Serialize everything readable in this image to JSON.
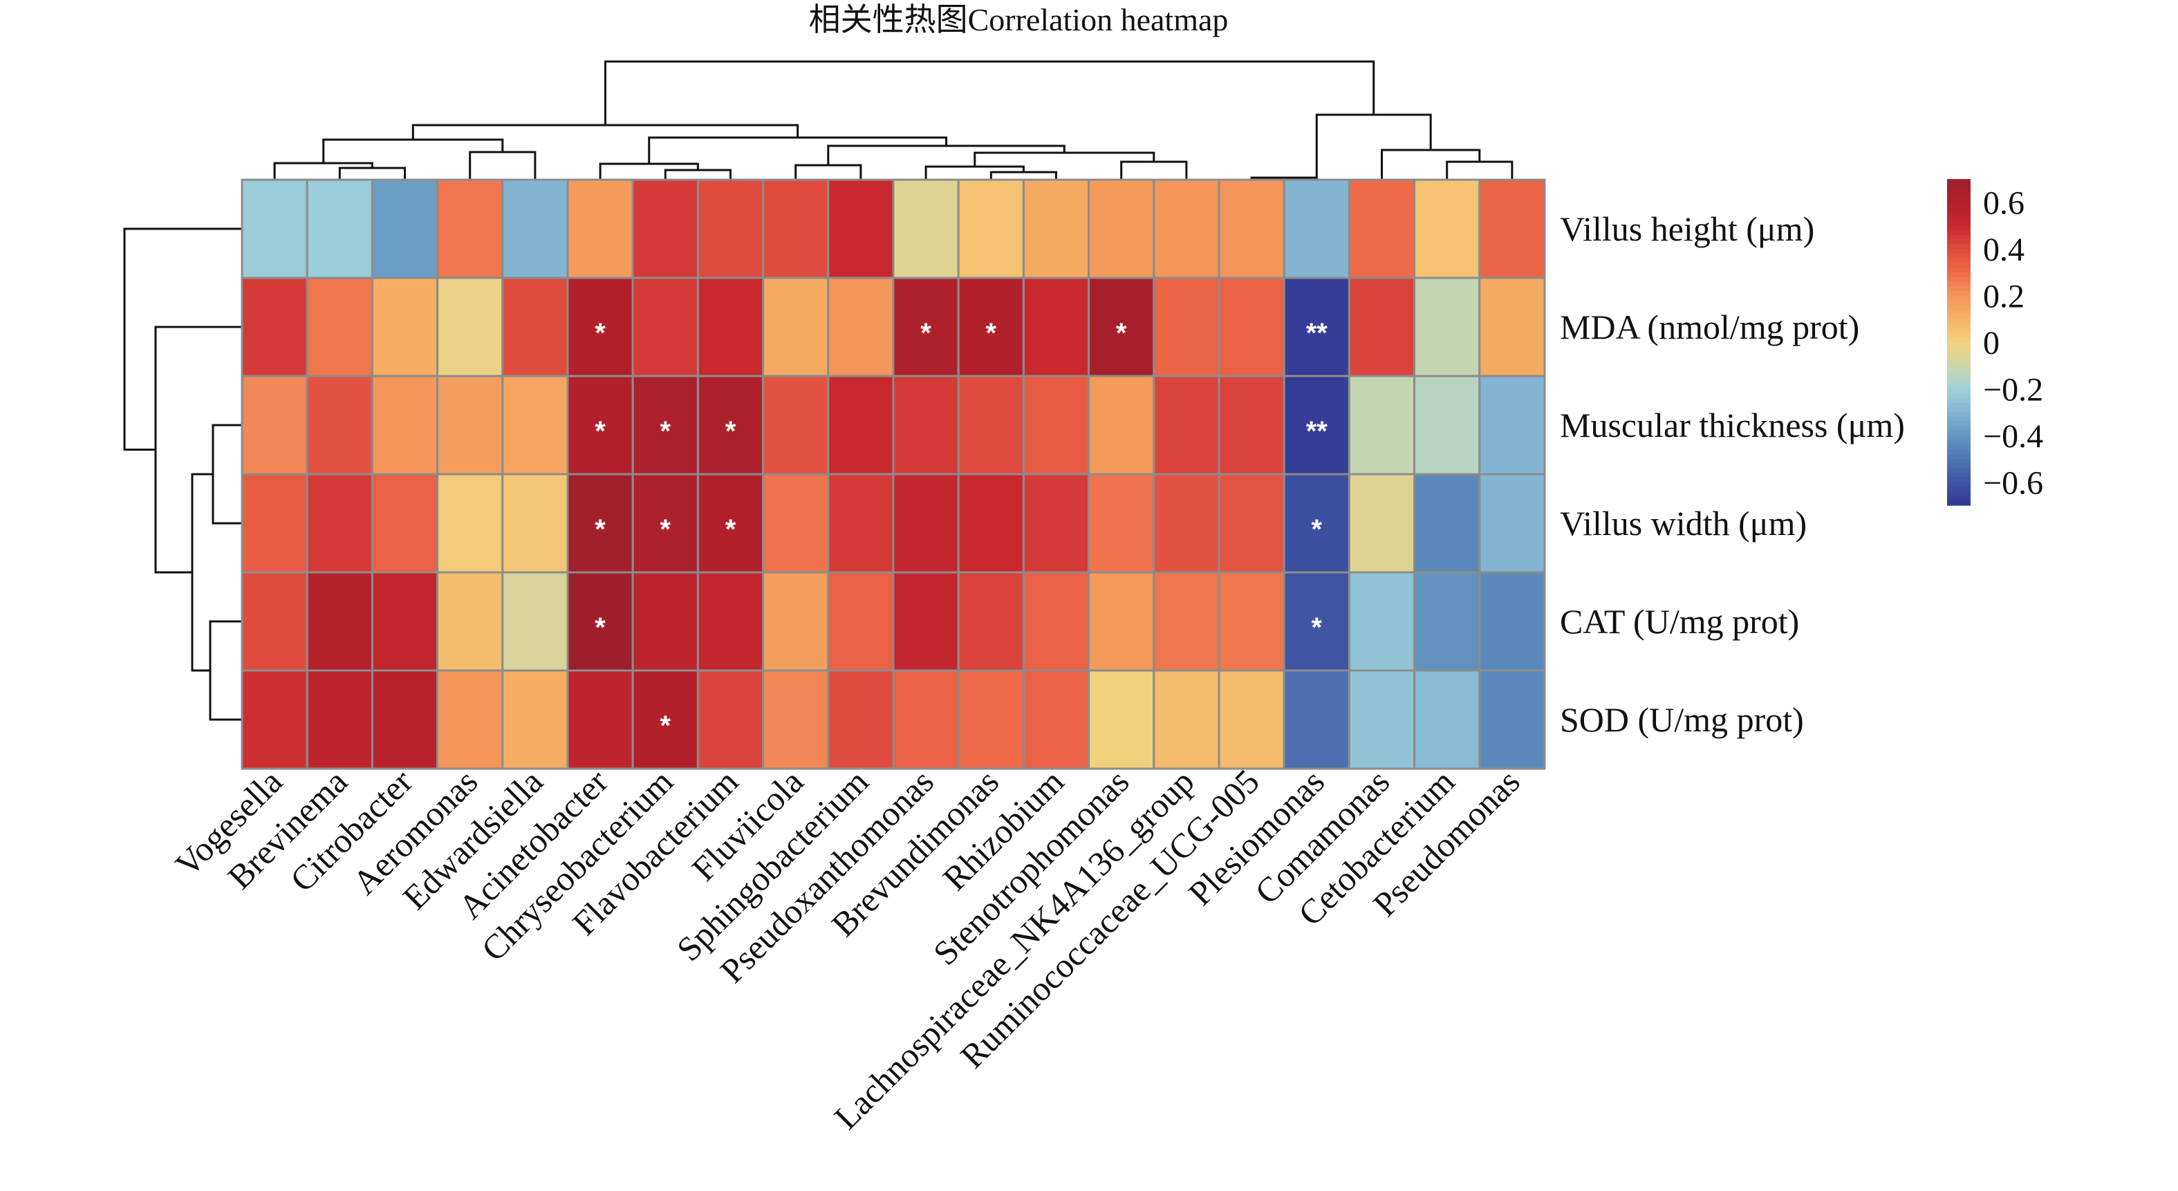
{
  "chart_data": {
    "type": "heatmap",
    "title": "相关性热图Correlation heatmap",
    "rows": [
      "Villus height (μm)",
      "MDA (nmol/mg prot)",
      "Muscular thickness (μm)",
      "Villus width (μm)",
      "CAT (U/mg prot)",
      "SOD (U/mg prot)"
    ],
    "columns": [
      "Vogesella",
      "Brevinema",
      "Citrobacter",
      "Aeromonas",
      "Edwardsiella",
      "Acinetobacter",
      "Chryseobacterium",
      "Flavobacterium",
      "Fluviicola",
      "Sphingobacterium",
      "Pseudoxanthomonas",
      "Brevundimonas",
      "Rhizobium",
      "Stenotrophomonas",
      "Lachnospiraceae_NK4A136_group",
      "Ruminococcaceae_UCG-005",
      "Plesiomonas",
      "Comamonas",
      "Cetobacterium",
      "Pseudomonas"
    ],
    "values": [
      [
        -0.22,
        -0.22,
        -0.38,
        0.27,
        -0.3,
        0.18,
        0.45,
        0.4,
        0.4,
        0.5,
        -0.05,
        0.05,
        0.13,
        0.18,
        0.2,
        0.2,
        -0.3,
        0.3,
        0.05,
        0.32
      ],
      [
        0.45,
        0.27,
        0.12,
        -0.02,
        0.4,
        0.6,
        0.45,
        0.5,
        0.13,
        0.2,
        0.62,
        0.6,
        0.5,
        0.65,
        0.32,
        0.33,
        -0.68,
        0.42,
        -0.12,
        0.13
      ],
      [
        0.23,
        0.38,
        0.2,
        0.17,
        0.15,
        0.6,
        0.63,
        0.63,
        0.38,
        0.5,
        0.45,
        0.4,
        0.35,
        0.18,
        0.42,
        0.42,
        -0.68,
        -0.12,
        -0.15,
        -0.3
      ],
      [
        0.35,
        0.45,
        0.33,
        0.02,
        0.03,
        0.68,
        0.63,
        0.6,
        0.28,
        0.45,
        0.52,
        0.5,
        0.45,
        0.28,
        0.38,
        0.37,
        -0.62,
        -0.05,
        -0.45,
        -0.3
      ],
      [
        0.4,
        0.58,
        0.53,
        0.07,
        -0.07,
        0.7,
        0.55,
        0.52,
        0.17,
        0.33,
        0.52,
        0.42,
        0.33,
        0.18,
        0.27,
        0.27,
        -0.6,
        -0.25,
        -0.42,
        -0.45
      ],
      [
        0.48,
        0.55,
        0.57,
        0.2,
        0.12,
        0.55,
        0.6,
        0.42,
        0.23,
        0.4,
        0.33,
        0.3,
        0.33,
        0.0,
        0.07,
        0.07,
        -0.52,
        -0.25,
        -0.28,
        -0.45
      ]
    ],
    "significance": [
      [
        "",
        "",
        "",
        "",
        "",
        "",
        "",
        "",
        "",
        "",
        "",
        "",
        "",
        "",
        "",
        "",
        "",
        "",
        "",
        ""
      ],
      [
        "",
        "",
        "",
        "",
        "",
        "*",
        "",
        "",
        "",
        "",
        "*",
        "*",
        "",
        "*",
        "",
        "",
        "**",
        "",
        "",
        ""
      ],
      [
        "",
        "",
        "",
        "",
        "",
        "*",
        "*",
        "*",
        "",
        "",
        "",
        "",
        "",
        "",
        "",
        "",
        "**",
        "",
        "",
        ""
      ],
      [
        "",
        "",
        "",
        "",
        "",
        "*",
        "*",
        "*",
        "",
        "",
        "",
        "",
        "",
        "",
        "",
        "",
        "*",
        "",
        "",
        ""
      ],
      [
        "",
        "",
        "",
        "",
        "",
        "*",
        "",
        "",
        "",
        "",
        "",
        "",
        "",
        "",
        "",
        "",
        "*",
        "",
        "",
        ""
      ],
      [
        "",
        "",
        "",
        "",
        "",
        "",
        "*",
        "",
        "",
        "",
        "",
        "",
        "",
        "",
        "",
        "",
        "",
        "",
        "",
        ""
      ]
    ],
    "colorbar": {
      "range": [
        -0.7,
        0.7
      ],
      "ticks": [
        0.6,
        0.4,
        0.2,
        0,
        -0.2,
        -0.4,
        -0.6
      ],
      "tick_labels": [
        "0.6",
        "0.4",
        "0.2",
        "0",
        "−0.2",
        "−0.4",
        "−0.6"
      ],
      "colors": [
        "#333894",
        "#3f55a3",
        "#4f77b2",
        "#6598c2",
        "#82b5d2",
        "#a0d2dc",
        "#cdd6a8",
        "#f2d07d",
        "#f5b366",
        "#f4955a",
        "#ee6a48",
        "#e04b3f",
        "#c8282e",
        "#b2202c",
        "#9e1f2c"
      ],
      "placement": "right"
    },
    "row_dendrogram": true,
    "column_dendrogram": true,
    "grid_color": "#8c8c8c"
  }
}
